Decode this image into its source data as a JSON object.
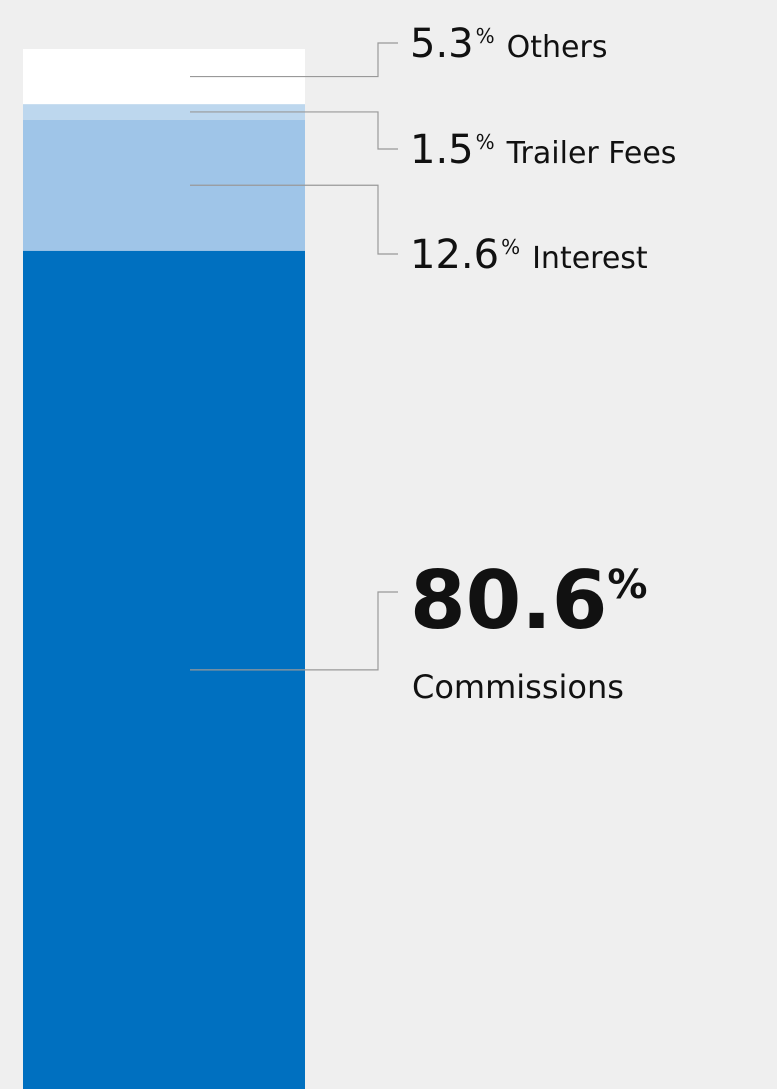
{
  "chart_data": {
    "type": "stacked-bar",
    "unit": "%",
    "series": [
      {
        "name": "Commissions",
        "color": "#0070c0",
        "values": [
          80.6
        ]
      },
      {
        "name": "Interest",
        "color": "#9fc5e8",
        "values": [
          12.6
        ]
      },
      {
        "name": "Trailer Fees",
        "color": "#bdd7ee",
        "values": [
          1.5
        ]
      },
      {
        "name": "Others",
        "color": "#ffffff",
        "values": [
          5.3
        ]
      }
    ],
    "ylim": [
      0,
      100
    ]
  }
}
